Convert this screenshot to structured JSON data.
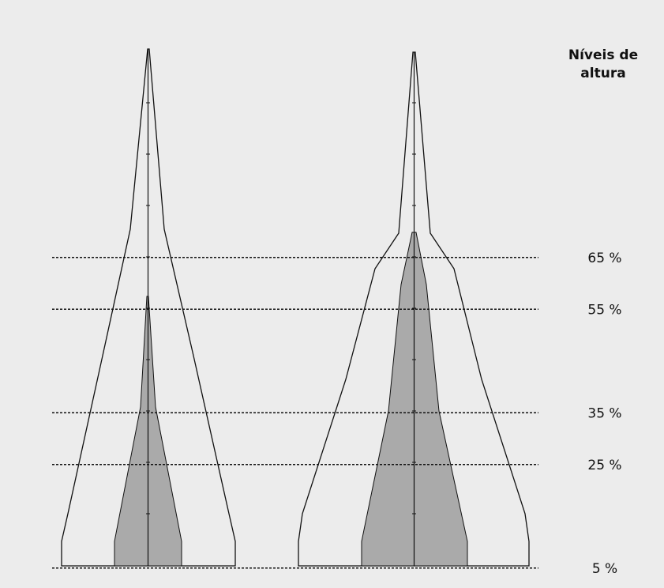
{
  "header": {
    "title_line1": "Níveis de",
    "title_line2": "altura"
  },
  "levels": [
    {
      "label": "65 %",
      "percent": 65
    },
    {
      "label": "55 %",
      "percent": 55
    },
    {
      "label": "35 %",
      "percent": 35
    },
    {
      "label": "25 %",
      "percent": 25
    },
    {
      "label": "5 %",
      "percent": 5
    }
  ],
  "colors": {
    "background": "#ececec",
    "outline": "#111111",
    "fill": "#aaaaaa",
    "dashed_line": "#111111"
  },
  "trees": [
    {
      "name": "tree-left",
      "shaded_top_percent": 50
    },
    {
      "name": "tree-right",
      "shaded_top_percent": 65
    }
  ]
}
